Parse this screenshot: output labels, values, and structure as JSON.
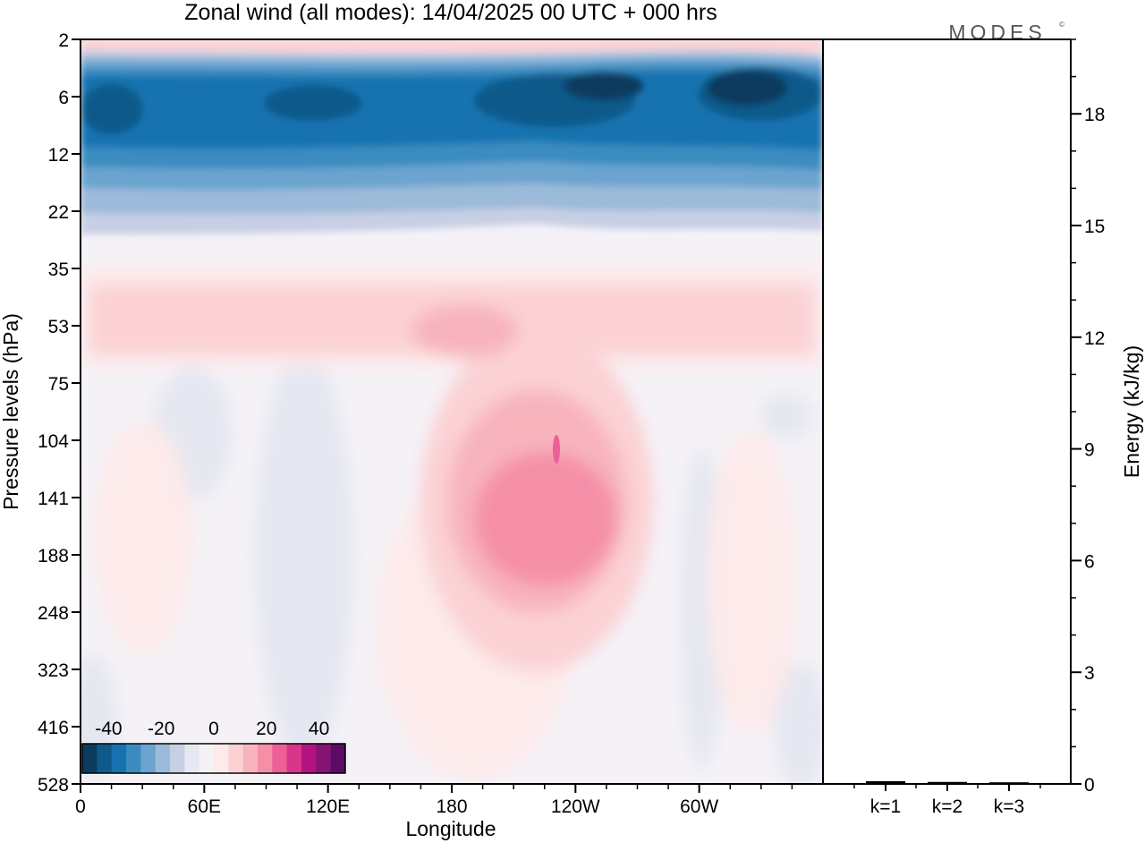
{
  "title": "Zonal wind (all modes):  14/04/2025  00 UTC  + 000 hrs",
  "brand": "MODES",
  "brand_mark": "©",
  "chart_data": [
    {
      "type": "heatmap",
      "xlabel": "Longitude",
      "ylabel": "Pressure levels (hPa)",
      "x_ticks": [
        "0",
        "60E",
        "120E",
        "180",
        "120W",
        "60W"
      ],
      "x_ticks_deg": [
        0,
        60,
        120,
        180,
        240,
        300
      ],
      "xlim": [
        0,
        360
      ],
      "y_ticks": [
        "2",
        "6",
        "12",
        "22",
        "35",
        "53",
        "75",
        "104",
        "141",
        "188",
        "248",
        "323",
        "416",
        "528"
      ],
      "y_scale": "ordinal pressure levels, top to bottom",
      "colorbar": {
        "ticks": [
          "-40",
          "-20",
          "0",
          "20",
          "40"
        ],
        "min": -50,
        "max": 50,
        "step": 5,
        "colors": [
          "#0d3b5e",
          "#0f5a8a",
          "#1673b0",
          "#3a8cc0",
          "#6ba4cf",
          "#9cbad9",
          "#c7cfe4",
          "#e5e7f1",
          "#f5f2f7",
          "#fdeaea",
          "#fbd1d4",
          "#f8b4bd",
          "#f58fa8",
          "#ec5f97",
          "#d8348a",
          "#b11481",
          "#851475",
          "#5b0b66"
        ]
      },
      "grid": false,
      "description_regions": {
        "easterly_core_level_hPa": "6-12",
        "easterly_peak_ms": -45,
        "westerly_maximum_level_hPa": "104-188",
        "westerly_maximum_lon": "200-240",
        "westerly_peak_ms": 25
      }
    },
    {
      "type": "bar",
      "ylabel": "Energy (kJ/kg)",
      "categories": [
        "k=1",
        "k=2",
        "k=3"
      ],
      "values": [
        0.05,
        0.03,
        0.02
      ],
      "ylim": [
        0,
        20
      ],
      "y_ticks": [
        0,
        3,
        6,
        9,
        12,
        15,
        18
      ],
      "y_minor_step": 1
    }
  ]
}
